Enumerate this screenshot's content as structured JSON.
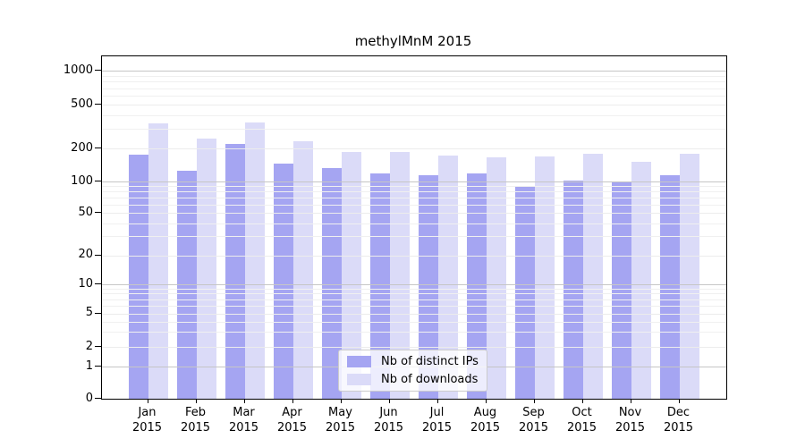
{
  "chart_data": {
    "type": "bar",
    "title": "methylMnM 2015",
    "categories": [
      "Jan 2015",
      "Feb 2015",
      "Mar 2015",
      "Apr 2015",
      "May 2015",
      "Jun 2015",
      "Jul 2015",
      "Aug 2015",
      "Sep 2015",
      "Oct 2015",
      "Nov 2015",
      "Dec 2015"
    ],
    "series": [
      {
        "name": "Nb of distinct IPs",
        "color": "#a5a5f2",
        "values": [
          176,
          126,
          220,
          145,
          132,
          118,
          113,
          119,
          91,
          101,
          98,
          115
        ]
      },
      {
        "name": "Nb of downloads",
        "color": "#dbdbf8",
        "values": [
          335,
          248,
          344,
          231,
          186,
          187,
          173,
          166,
          169,
          178,
          150,
          178
        ]
      }
    ],
    "xlabel": "",
    "ylabel": "",
    "yscale": "symlog",
    "y_ticks": [
      0,
      1,
      2,
      5,
      10,
      20,
      50,
      100,
      200,
      500,
      1000
    ],
    "ylim": [
      0,
      1330
    ],
    "grid": true,
    "legend_position": "lower center",
    "colors": {
      "major_gridline": "#c6c6c6",
      "labeled_gridline": "#ececec",
      "minor_gridline": "#f0f0f0",
      "axis": "#000000",
      "background": "#ffffff"
    }
  }
}
